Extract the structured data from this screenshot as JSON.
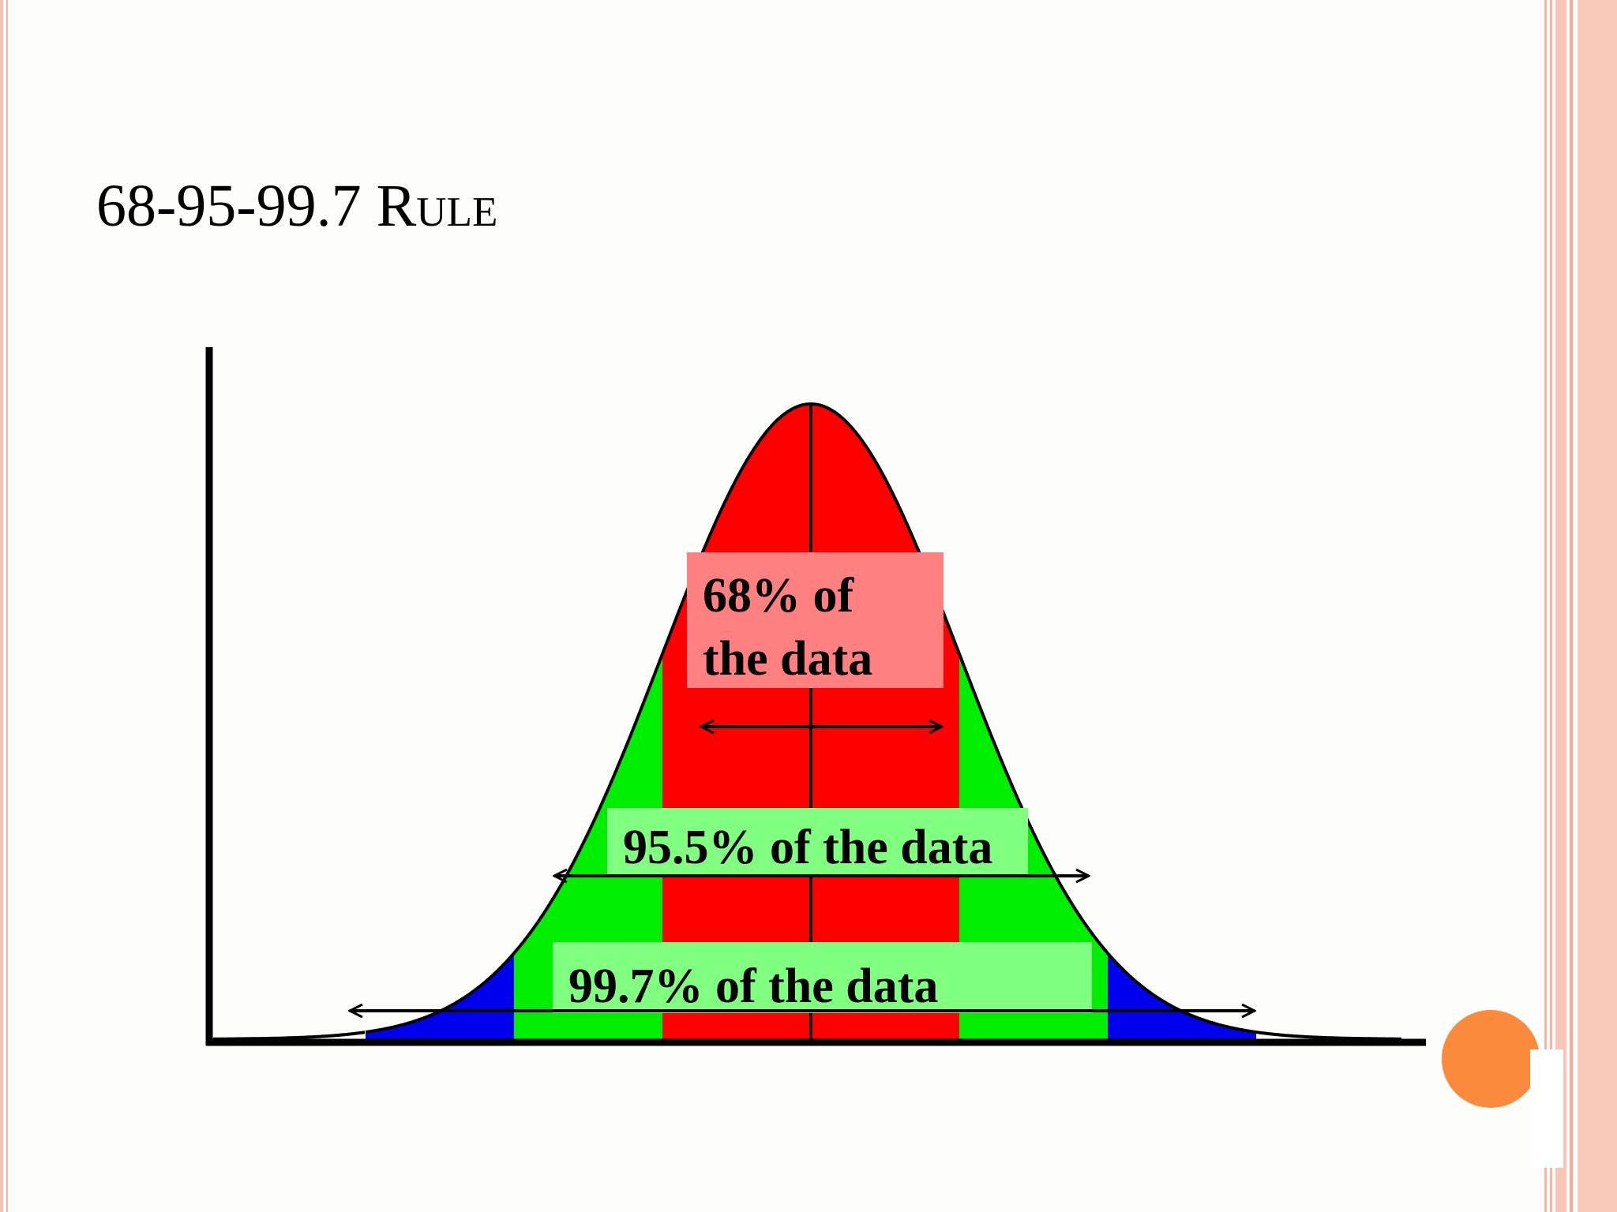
{
  "slide": {
    "title": "68-95-99.7 Rule"
  },
  "colors": {
    "background": "#fdfdfb",
    "border_accent": "#f4b7a6",
    "accent_dot": "#fb8a3c",
    "band_1sd": "#ff0000",
    "band_2sd": "#00ee00",
    "band_3sd": "#0000ee",
    "label_1sd_bg": "#ff8080",
    "label_other_bg": "#80ff80"
  },
  "diagram": {
    "type": "normal-distribution",
    "bands": [
      {
        "name": "within-1-sd",
        "from_sd": -1,
        "to_sd": 1,
        "label": "68% of the data",
        "label_lines": [
          "68% of",
          "the data"
        ]
      },
      {
        "name": "within-2-sd",
        "from_sd": -2,
        "to_sd": 2,
        "label": "95.5% of the data"
      },
      {
        "name": "within-3-sd",
        "from_sd": -3,
        "to_sd": 3,
        "label": "99.7% of the data"
      }
    ]
  }
}
